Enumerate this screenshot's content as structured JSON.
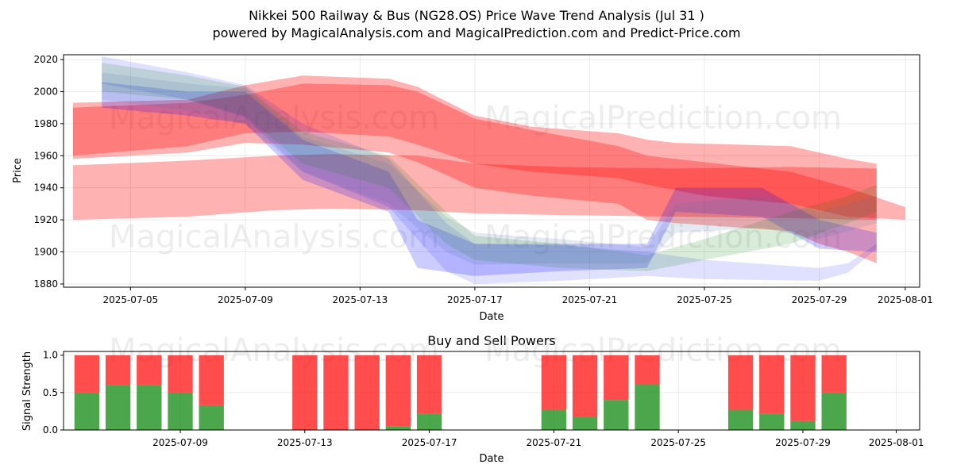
{
  "title_line1": "Nikkei 500 Railway & Bus (NG28.OS) Price Wave Trend Analysis (Jul 31 )",
  "title_line2": "powered by MagicalAnalysis.com and MagicalPrediction.com and Predict-Price.com",
  "watermarks": [
    "MagicalAnalysis.com",
    "MagicalPrediction.com"
  ],
  "chart_data": [
    {
      "type": "area",
      "title": "",
      "xlabel": "Date",
      "ylabel": "Price",
      "xlim": [
        "2025-07-02T16:00",
        "2025-08-01T12:00"
      ],
      "ylim": [
        1878,
        2023
      ],
      "yticks": [
        1880,
        1900,
        1920,
        1940,
        1960,
        1980,
        2000,
        2020
      ],
      "xticks": [
        "2025-07-05",
        "2025-07-09",
        "2025-07-13",
        "2025-07-17",
        "2025-07-21",
        "2025-07-25",
        "2025-07-29",
        "2025-08-01"
      ],
      "bands": [
        {
          "name": "red-band-1",
          "color": "#ff0000",
          "opacity": 0.3,
          "x": [
            "2025-07-03",
            "2025-07-07",
            "2025-07-10",
            "2025-07-12",
            "2025-07-15",
            "2025-07-17",
            "2025-07-20",
            "2025-07-24",
            "2025-07-28",
            "2025-07-31"
          ],
          "upper": [
            1954,
            1957,
            1960,
            1961,
            1960,
            1955,
            1953,
            1952,
            1953,
            1952
          ],
          "lower": [
            1920,
            1922,
            1926,
            1927,
            1926,
            1924,
            1923,
            1922,
            1921,
            1920
          ]
        },
        {
          "name": "red-band-2",
          "color": "#ff0000",
          "opacity": 0.3,
          "x": [
            "2025-07-03",
            "2025-07-07",
            "2025-07-09",
            "2025-07-11",
            "2025-07-14",
            "2025-07-15",
            "2025-07-17",
            "2025-07-19",
            "2025-07-22",
            "2025-07-23",
            "2025-07-24",
            "2025-07-28",
            "2025-07-29",
            "2025-07-30",
            "2025-07-31"
          ],
          "upper": [
            1993,
            1995,
            2004,
            2010,
            2008,
            2003,
            1985,
            1978,
            1974,
            1970,
            1968,
            1966,
            1962,
            1958,
            1955
          ],
          "lower": [
            1958,
            1962,
            1968,
            1967,
            1962,
            1956,
            1940,
            1935,
            1930,
            1920,
            1918,
            1913,
            1905,
            1900,
            1893
          ]
        },
        {
          "name": "red-band-3",
          "color": "#ff0000",
          "opacity": 0.3,
          "x": [
            "2025-07-03",
            "2025-07-07",
            "2025-07-09",
            "2025-07-11",
            "2025-07-14",
            "2025-07-15",
            "2025-07-17",
            "2025-07-19",
            "2025-07-22",
            "2025-07-23",
            "2025-07-25",
            "2025-07-28",
            "2025-07-30",
            "2025-08-01"
          ],
          "upper": [
            1990,
            1993,
            1998,
            2005,
            2004,
            2000,
            1983,
            1976,
            1966,
            1960,
            1956,
            1950,
            1940,
            1928
          ],
          "lower": [
            1960,
            1966,
            1974,
            1975,
            1972,
            1967,
            1955,
            1950,
            1946,
            1942,
            1935,
            1930,
            1922,
            1920
          ]
        },
        {
          "name": "blue-band-1",
          "color": "#0000ff",
          "opacity": 0.12,
          "x": [
            "2025-07-04",
            "2025-07-07",
            "2025-07-09",
            "2025-07-11",
            "2025-07-14",
            "2025-07-16",
            "2025-07-17",
            "2025-07-20",
            "2025-07-23",
            "2025-07-25",
            "2025-07-29",
            "2025-07-30",
            "2025-07-31"
          ],
          "upper": [
            2022,
            2012,
            2004,
            1980,
            1958,
            1918,
            1905,
            1904,
            1900,
            1895,
            1890,
            1893,
            1905
          ],
          "lower": [
            2005,
            1995,
            1984,
            1950,
            1928,
            1888,
            1880,
            1882,
            1885,
            1883,
            1882,
            1887,
            1902
          ]
        },
        {
          "name": "blue-band-2",
          "color": "#0000ff",
          "opacity": 0.2,
          "x": [
            "2025-07-04",
            "2025-07-07",
            "2025-07-09",
            "2025-07-11",
            "2025-07-14",
            "2025-07-15",
            "2025-07-17",
            "2025-07-20",
            "2025-07-23",
            "2025-07-24",
            "2025-07-27",
            "2025-07-29",
            "2025-07-31"
          ],
          "upper": [
            2006,
            2000,
            2000,
            1970,
            1950,
            1920,
            1905,
            1905,
            1905,
            1940,
            1940,
            1920,
            1912
          ],
          "lower": [
            1990,
            1985,
            1980,
            1945,
            1925,
            1890,
            1885,
            1888,
            1890,
            1925,
            1922,
            1902,
            1900
          ]
        },
        {
          "name": "green-band-1",
          "color": "#008000",
          "opacity": 0.15,
          "x": [
            "2025-07-04",
            "2025-07-07",
            "2025-07-09",
            "2025-07-11",
            "2025-07-14",
            "2025-07-16",
            "2025-07-17",
            "2025-07-20",
            "2025-07-23",
            "2025-07-25",
            "2025-07-28",
            "2025-07-30",
            "2025-07-31"
          ],
          "upper": [
            2018,
            2010,
            2003,
            1975,
            1960,
            1925,
            1910,
            1905,
            1898,
            1908,
            1925,
            1935,
            1942
          ],
          "lower": [
            2000,
            1995,
            1985,
            1955,
            1940,
            1905,
            1895,
            1890,
            1888,
            1895,
            1905,
            1918,
            1925
          ]
        },
        {
          "name": "grey-band-1",
          "color": "#4a6fa0",
          "opacity": 0.15,
          "x": [
            "2025-07-04",
            "2025-07-07",
            "2025-07-09",
            "2025-07-11",
            "2025-07-14",
            "2025-07-16",
            "2025-07-17",
            "2025-07-20",
            "2025-07-23",
            "2025-07-24",
            "2025-07-27",
            "2025-07-29",
            "2025-07-31"
          ],
          "upper": [
            2012,
            2005,
            2002,
            1972,
            1955,
            1922,
            1912,
            1908,
            1903,
            1930,
            1935,
            1925,
            1935
          ],
          "lower": [
            1995,
            1988,
            1980,
            1950,
            1930,
            1900,
            1892,
            1893,
            1893,
            1912,
            1915,
            1908,
            1918
          ]
        }
      ]
    },
    {
      "type": "bar",
      "title": "Buy and Sell Powers",
      "xlabel": "Date",
      "ylabel": "Signal Strength",
      "ylim": [
        0,
        1.05
      ],
      "yticks": [
        0.0,
        0.5,
        1.0
      ],
      "xticks": [
        "2025-07-09",
        "2025-07-13",
        "2025-07-17",
        "2025-07-21",
        "2025-07-25",
        "2025-07-29",
        "2025-08-01"
      ],
      "xlim": [
        "2025-07-05T06:00",
        "2025-08-01T18:00"
      ],
      "categories": [
        "2025-07-06",
        "2025-07-07",
        "2025-07-08",
        "2025-07-09",
        "2025-07-10",
        "2025-07-13",
        "2025-07-14",
        "2025-07-15",
        "2025-07-16",
        "2025-07-17",
        "2025-07-21",
        "2025-07-22",
        "2025-07-23",
        "2025-07-24",
        "2025-07-27",
        "2025-07-28",
        "2025-07-29",
        "2025-07-30"
      ],
      "series": [
        {
          "name": "Buy",
          "color": "#008000",
          "values": [
            0.5,
            0.6,
            0.6,
            0.5,
            0.33,
            0,
            0,
            0,
            0.05,
            0.22,
            0.27,
            0.17,
            0.4,
            0.61,
            0.27,
            0.22,
            0.12,
            0.5
          ]
        },
        {
          "name": "Sell",
          "color": "#ff0000",
          "values": [
            0.5,
            0.4,
            0.4,
            0.5,
            0.67,
            1,
            1,
            1,
            0.95,
            0.78,
            0.73,
            0.83,
            0.6,
            0.39,
            0.73,
            0.78,
            0.88,
            0.5
          ]
        }
      ]
    }
  ]
}
